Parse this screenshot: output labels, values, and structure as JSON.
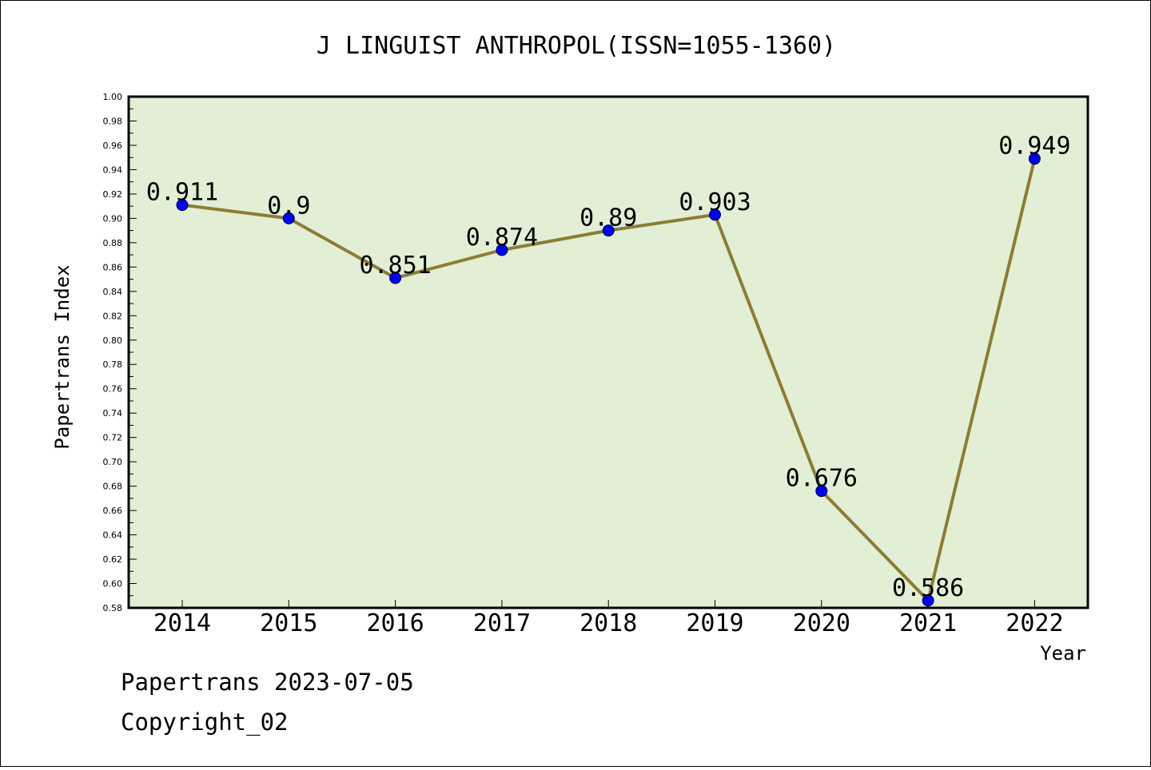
{
  "chart_data": {
    "type": "line",
    "title": "J LINGUIST ANTHROPOL(ISSN=1055-1360)",
    "xlabel": "Year",
    "ylabel": "Papertrans Index",
    "categories": [
      "2014",
      "2015",
      "2016",
      "2017",
      "2018",
      "2019",
      "2020",
      "2021",
      "2022"
    ],
    "series": [
      {
        "values": [
          0.911,
          0.9,
          0.851,
          0.874,
          0.89,
          0.903,
          0.676,
          0.586,
          0.949
        ],
        "labels": [
          "0.911",
          "0.9",
          "0.851",
          "0.874",
          "0.89",
          "0.903",
          "0.676",
          "0.586",
          "0.949"
        ]
      }
    ],
    "ylim": [
      0.58,
      1.0
    ],
    "yticks": [
      "0.58",
      "0.60",
      "0.62",
      "0.64",
      "0.66",
      "0.68",
      "0.70",
      "0.72",
      "0.74",
      "0.76",
      "0.78",
      "0.80",
      "0.82",
      "0.84",
      "0.86",
      "0.88",
      "0.90",
      "0.92",
      "0.94",
      "0.96",
      "0.98",
      "1.00"
    ],
    "ytick_values": [
      0.58,
      0.6,
      0.62,
      0.64,
      0.66,
      0.68,
      0.7,
      0.72,
      0.74,
      0.76,
      0.78,
      0.8,
      0.82,
      0.84,
      0.86,
      0.88,
      0.9,
      0.92,
      0.94,
      0.96,
      0.98,
      1.0
    ],
    "grid": false,
    "colors": {
      "plot_background": "#e2efd5",
      "line": "#8b7d35",
      "marker": "#0000ff"
    }
  },
  "footer": {
    "line1": "Papertrans 2023-07-05",
    "line2": "Copyright_02"
  }
}
